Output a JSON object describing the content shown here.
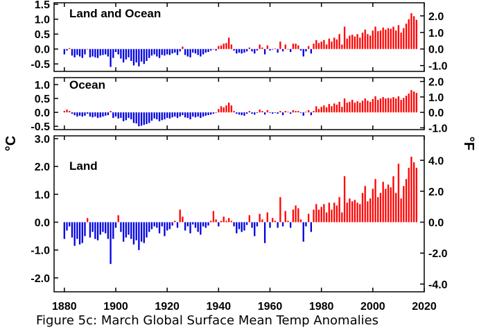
{
  "caption": "Figure 5c: March Global Surface Mean Temp Anomalies",
  "chart_data": [
    {
      "type": "bar",
      "title": "Land and Ocean",
      "ylabel": "",
      "y2label": "",
      "x_start": 1880,
      "ylim": [
        -0.75,
        1.55
      ],
      "yticks": [
        -0.5,
        0.0,
        0.5,
        1.0,
        1.5
      ],
      "ytick_labels": [
        "-0.5",
        "0.0",
        "0.5",
        "1.0",
        "1.5"
      ],
      "y2ticks_f": [
        -1.0,
        0.0,
        1.0,
        2.0
      ],
      "y2tick_labels": [
        "-1.0",
        "0.0",
        "1.0",
        "2.0"
      ],
      "values": [
        -0.18,
        -0.05,
        0.03,
        -0.22,
        -0.28,
        -0.2,
        -0.25,
        -0.3,
        -0.18,
        0.0,
        -0.28,
        -0.25,
        -0.28,
        -0.3,
        -0.22,
        -0.2,
        -0.18,
        -0.25,
        -0.6,
        -0.3,
        -0.1,
        -0.18,
        -0.32,
        -0.45,
        -0.35,
        -0.28,
        -0.4,
        -0.55,
        -0.45,
        -0.58,
        -0.42,
        -0.5,
        -0.4,
        -0.3,
        -0.22,
        -0.18,
        -0.25,
        -0.3,
        -0.2,
        -0.22,
        -0.18,
        -0.2,
        -0.15,
        -0.12,
        -0.2,
        -0.08,
        0.08,
        -0.2,
        -0.25,
        -0.28,
        -0.12,
        -0.15,
        -0.2,
        -0.25,
        -0.18,
        -0.12,
        -0.1,
        -0.05,
        0.0,
        -0.05,
        0.1,
        0.12,
        0.18,
        0.2,
        0.38,
        0.15,
        -0.05,
        -0.15,
        -0.12,
        -0.15,
        -0.12,
        -0.08,
        0.05,
        -0.08,
        -0.15,
        -0.05,
        0.15,
        0.05,
        -0.18,
        0.12,
        -0.05,
        -0.02,
        0.02,
        -0.12,
        0.25,
        -0.08,
        0.15,
        0.0,
        -0.1,
        0.18,
        0.18,
        0.12,
        -0.05,
        -0.25,
        -0.08,
        0.1,
        -0.15,
        0.18,
        0.3,
        0.2,
        0.25,
        0.3,
        0.15,
        0.35,
        0.25,
        0.38,
        0.32,
        0.5,
        0.15,
        0.75,
        0.35,
        0.45,
        0.48,
        0.42,
        0.5,
        0.38,
        0.55,
        0.65,
        0.5,
        0.45,
        0.62,
        0.75,
        0.6,
        0.62,
        0.72,
        0.65,
        0.7,
        0.68,
        0.75,
        0.62,
        0.8,
        0.55,
        0.7,
        0.85,
        1.0,
        1.2,
        1.1,
        0.98
      ]
    },
    {
      "type": "bar",
      "title": "Ocean",
      "ylabel": "°C",
      "y2label": "°F",
      "x_start": 1880,
      "ylim": [
        -0.62,
        1.25
      ],
      "yticks": [
        -0.5,
        0.0,
        0.5,
        1.0
      ],
      "ytick_labels": [
        "-0.5",
        "0.0",
        "0.5",
        "1.0"
      ],
      "y2ticks_f": [
        -1.0,
        0.0,
        1.0,
        2.0
      ],
      "y2tick_labels": [
        "-1.0",
        "0.0",
        "1.0",
        "2.0"
      ],
      "values": [
        0.05,
        0.1,
        0.05,
        -0.05,
        -0.1,
        -0.15,
        -0.12,
        -0.15,
        -0.12,
        -0.05,
        -0.15,
        -0.18,
        -0.15,
        -0.2,
        -0.18,
        -0.15,
        -0.12,
        -0.1,
        0.05,
        -0.2,
        -0.15,
        -0.22,
        -0.2,
        -0.32,
        -0.28,
        -0.2,
        -0.25,
        -0.38,
        -0.4,
        -0.5,
        -0.48,
        -0.45,
        -0.42,
        -0.38,
        -0.3,
        -0.22,
        -0.25,
        -0.32,
        -0.28,
        -0.25,
        -0.2,
        -0.22,
        -0.18,
        -0.15,
        -0.2,
        -0.15,
        -0.1,
        -0.18,
        -0.2,
        -0.25,
        -0.15,
        -0.18,
        -0.15,
        -0.2,
        -0.15,
        -0.12,
        -0.1,
        -0.08,
        -0.05,
        0.0,
        0.12,
        0.22,
        0.18,
        0.25,
        0.35,
        0.25,
        0.05,
        -0.05,
        -0.08,
        -0.1,
        -0.12,
        -0.05,
        0.05,
        -0.05,
        -0.08,
        -0.02,
        0.1,
        0.05,
        -0.08,
        0.08,
        -0.02,
        -0.05,
        -0.02,
        -0.05,
        0.05,
        -0.1,
        0.05,
        0.02,
        -0.05,
        0.08,
        0.05,
        0.05,
        -0.02,
        -0.12,
        0.02,
        0.08,
        -0.1,
        0.05,
        0.22,
        0.12,
        0.2,
        0.25,
        0.18,
        0.3,
        0.22,
        0.32,
        0.28,
        0.38,
        0.2,
        0.5,
        0.35,
        0.38,
        0.45,
        0.35,
        0.4,
        0.35,
        0.42,
        0.5,
        0.42,
        0.38,
        0.48,
        0.58,
        0.45,
        0.5,
        0.55,
        0.5,
        0.52,
        0.5,
        0.55,
        0.5,
        0.58,
        0.45,
        0.52,
        0.6,
        0.68,
        0.8,
        0.75,
        0.7
      ]
    },
    {
      "type": "bar",
      "title": "Land",
      "ylabel": "",
      "y2label": "",
      "x_start": 1880,
      "ylim": [
        -2.5,
        3.1
      ],
      "yticks": [
        -2.0,
        -1.0,
        0.0,
        1.0,
        2.0,
        3.0
      ],
      "ytick_labels": [
        "-2.0",
        "-1.0",
        "0.0",
        "1.0",
        "2.0",
        "3.0"
      ],
      "y2ticks_f": [
        -4.0,
        -2.0,
        0.0,
        2.0,
        4.0
      ],
      "y2tick_labels": [
        "-4.0",
        "-2.0",
        "0.0",
        "2.0",
        "4.0"
      ],
      "values": [
        -0.6,
        -0.3,
        -0.15,
        -0.55,
        -0.85,
        -0.6,
        -0.8,
        -0.75,
        -0.5,
        0.15,
        -0.55,
        -0.35,
        -0.6,
        -0.65,
        -0.45,
        -0.35,
        -0.4,
        -0.6,
        -1.5,
        -0.6,
        -0.2,
        0.25,
        -0.35,
        -0.7,
        -0.55,
        -0.45,
        -0.6,
        -0.8,
        -0.65,
        -1.0,
        -0.7,
        -0.75,
        -0.55,
        -0.35,
        -0.25,
        -0.15,
        -0.2,
        -0.4,
        -0.15,
        -0.5,
        -0.3,
        -0.25,
        -0.12,
        0.05,
        -0.2,
        0.45,
        0.2,
        -0.3,
        -0.15,
        -0.4,
        -0.08,
        -0.2,
        -0.35,
        -0.45,
        -0.15,
        -0.2,
        -0.12,
        0.05,
        0.4,
        0.1,
        -0.15,
        0.05,
        0.2,
        0.05,
        0.15,
        0.05,
        -0.15,
        -0.4,
        -0.25,
        -0.35,
        -0.3,
        -0.1,
        0.25,
        -0.2,
        -0.5,
        -0.15,
        0.3,
        0.1,
        -0.75,
        0.35,
        -0.2,
        0.15,
        0.05,
        -0.2,
        0.9,
        -0.15,
        0.4,
        0.05,
        -0.2,
        0.45,
        0.6,
        0.5,
        0.1,
        -0.7,
        -0.15,
        0.3,
        -0.35,
        0.45,
        0.65,
        0.45,
        0.55,
        0.65,
        0.35,
        0.7,
        0.45,
        0.7,
        0.6,
        0.9,
        0.35,
        1.65,
        0.7,
        0.85,
        0.75,
        0.8,
        0.7,
        0.65,
        1.05,
        1.3,
        0.75,
        0.85,
        1.2,
        1.55,
        0.9,
        1.05,
        1.45,
        1.2,
        1.35,
        1.25,
        1.65,
        1.05,
        2.1,
        0.85,
        1.3,
        1.55,
        1.95,
        2.35,
        2.15,
        1.95
      ]
    }
  ],
  "x_axis": {
    "xlim": [
      1876,
      2020
    ],
    "ticks": [
      1880,
      1900,
      1920,
      1940,
      1960,
      1980,
      2000,
      2020
    ],
    "tick_labels": [
      "1880",
      "1900",
      "1920",
      "1940",
      "1960",
      "1980",
      "2000",
      "2020"
    ],
    "xlabel": ""
  },
  "colors": {
    "positive": "#ff0000",
    "negative": "#0000e0",
    "axis": "#000000"
  }
}
